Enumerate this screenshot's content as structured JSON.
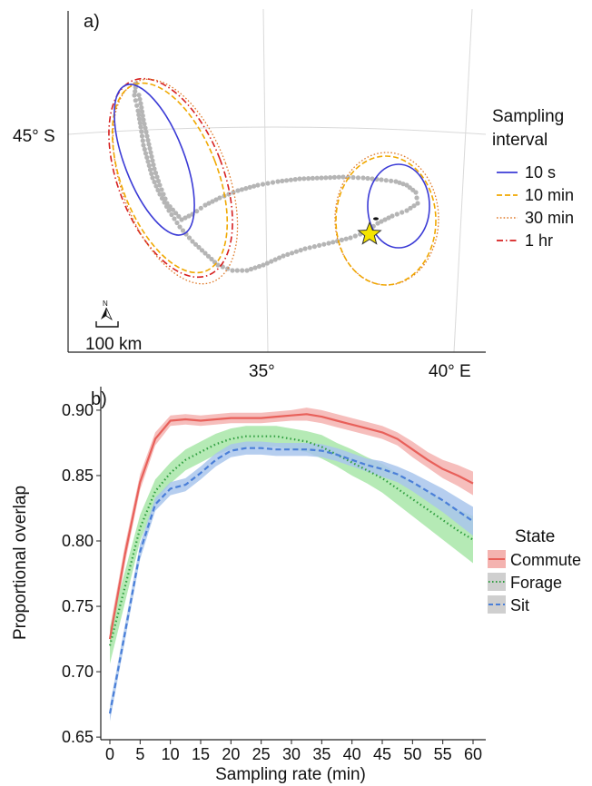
{
  "panel_a": {
    "label": "a)",
    "lat_label": "45° S",
    "lon_labels": [
      "35°",
      "40° E"
    ],
    "north_label": "N",
    "scale_label": "100 km",
    "legend": {
      "title_line1": "Sampling",
      "title_line2": "interval",
      "items": [
        {
          "label": "10 s",
          "color": "#3b3bd6",
          "dash": "solid"
        },
        {
          "label": "10 min",
          "color": "#f0a800",
          "dash": "dashed"
        },
        {
          "label": "30 min",
          "color": "#e07a2a",
          "dash": "dotted"
        },
        {
          "label": "1 hr",
          "color": "#d61f1f",
          "dash": "dashdot"
        }
      ]
    },
    "colors": {
      "track": "#b5b5b5",
      "star": "#f5e400"
    }
  },
  "chart_data": {
    "type": "line",
    "panel_label": "b)",
    "xlabel": "Sampling rate (min)",
    "ylabel": "Proportional overlap",
    "x_ticks": [
      "0",
      "5",
      "10",
      "15",
      "20",
      "25",
      "30",
      "35",
      "40",
      "45",
      "50",
      "55",
      "60"
    ],
    "y_ticks": [
      "0.65",
      "0.70",
      "0.75",
      "0.80",
      "0.85",
      "0.90"
    ],
    "xlim": [
      -1.5,
      61.5
    ],
    "ylim": [
      0.648,
      0.918
    ],
    "legend_title": "State",
    "legend_position": "right",
    "x": [
      0,
      2.5,
      5,
      7.5,
      10,
      12.5,
      15,
      17.5,
      20,
      22.5,
      25,
      27.5,
      30,
      32.5,
      35,
      37.5,
      40,
      42.5,
      45,
      47.5,
      50,
      52.5,
      55,
      57.5,
      60
    ],
    "series": [
      {
        "name": "Commute",
        "color": "#e8605a",
        "band": "#f4b3b0",
        "dash": "solid",
        "values": [
          0.725,
          0.79,
          0.845,
          0.878,
          0.892,
          0.893,
          0.892,
          0.893,
          0.894,
          0.894,
          0.894,
          0.895,
          0.896,
          0.897,
          0.895,
          0.892,
          0.889,
          0.886,
          0.883,
          0.878,
          0.87,
          0.862,
          0.855,
          0.85,
          0.844
        ],
        "band_width": [
          0.008,
          0.007,
          0.006,
          0.005,
          0.004,
          0.004,
          0.004,
          0.004,
          0.004,
          0.004,
          0.004,
          0.004,
          0.004,
          0.005,
          0.005,
          0.005,
          0.005,
          0.005,
          0.005,
          0.005,
          0.006,
          0.006,
          0.007,
          0.008,
          0.009
        ]
      },
      {
        "name": "Forage",
        "color": "#2e9e3e",
        "band": "#a8e6a8",
        "dash": "dotted",
        "values": [
          0.72,
          0.765,
          0.81,
          0.838,
          0.852,
          0.862,
          0.868,
          0.874,
          0.878,
          0.88,
          0.88,
          0.88,
          0.878,
          0.876,
          0.872,
          0.866,
          0.86,
          0.854,
          0.848,
          0.84,
          0.832,
          0.824,
          0.816,
          0.808,
          0.801
        ],
        "band_width": [
          0.014,
          0.012,
          0.01,
          0.009,
          0.008,
          0.008,
          0.008,
          0.008,
          0.008,
          0.008,
          0.008,
          0.008,
          0.008,
          0.008,
          0.009,
          0.009,
          0.01,
          0.01,
          0.011,
          0.012,
          0.013,
          0.014,
          0.015,
          0.016,
          0.018
        ]
      },
      {
        "name": "Sit",
        "color": "#4a7fd8",
        "band": "#a9c6ec",
        "dash": "dashed",
        "values": [
          0.668,
          0.73,
          0.792,
          0.828,
          0.84,
          0.843,
          0.852,
          0.862,
          0.869,
          0.871,
          0.871,
          0.87,
          0.87,
          0.87,
          0.869,
          0.866,
          0.862,
          0.858,
          0.855,
          0.851,
          0.845,
          0.838,
          0.831,
          0.823,
          0.815
        ],
        "band_width": [
          0.006,
          0.006,
          0.006,
          0.005,
          0.005,
          0.005,
          0.005,
          0.005,
          0.005,
          0.005,
          0.005,
          0.005,
          0.005,
          0.005,
          0.005,
          0.005,
          0.005,
          0.005,
          0.006,
          0.006,
          0.007,
          0.008,
          0.009,
          0.01,
          0.011
        ]
      }
    ]
  }
}
